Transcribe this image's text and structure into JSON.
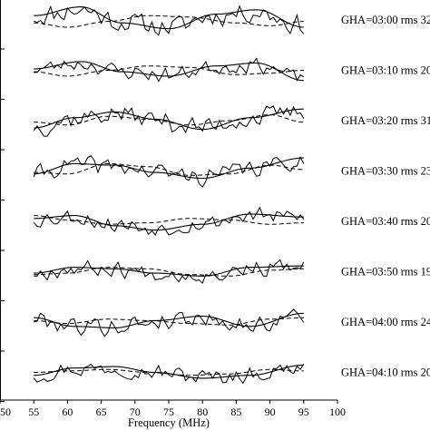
{
  "chart_data": {
    "type": "line",
    "title": "",
    "xlabel": "Frequency (MHz)",
    "ylabel": "",
    "xlim": [
      50,
      100
    ],
    "x_ticks": [
      "50",
      "55",
      "60",
      "65",
      "70",
      "75",
      "80",
      "85",
      "90",
      "95",
      "100"
    ],
    "x_data_range": [
      55,
      95
    ],
    "legend": "none",
    "grid": false,
    "panels": [
      {
        "label": "GHA=03:00 rms 32",
        "seed": 11,
        "noise": 1.0,
        "fit": [
          [
            55,
            0.3
          ],
          [
            62,
            0.9
          ],
          [
            68,
            -0.2
          ],
          [
            75,
            -0.6
          ],
          [
            82,
            0.4
          ],
          [
            88,
            0.7
          ],
          [
            95,
            -0.5
          ]
        ],
        "model": [
          [
            55,
            -0.2
          ],
          [
            60,
            -0.5
          ],
          [
            66,
            -0.1
          ],
          [
            72,
            0.3
          ],
          [
            78,
            0.2
          ],
          [
            85,
            -0.2
          ],
          [
            90,
            -0.4
          ],
          [
            95,
            -0.1
          ]
        ]
      },
      {
        "label": "GHA=03:10 rms 20",
        "seed": 23,
        "noise": 0.75,
        "fit": [
          [
            55,
            0.1
          ],
          [
            62,
            0.6
          ],
          [
            68,
            -0.1
          ],
          [
            75,
            -0.4
          ],
          [
            82,
            0.3
          ],
          [
            88,
            0.5
          ],
          [
            95,
            -0.7
          ]
        ],
        "model": [
          [
            55,
            -0.1
          ],
          [
            60,
            -0.4
          ],
          [
            66,
            0.0
          ],
          [
            72,
            0.3
          ],
          [
            78,
            0.2
          ],
          [
            85,
            -0.3
          ],
          [
            90,
            -0.2
          ],
          [
            95,
            0.0
          ]
        ]
      },
      {
        "label": "GHA=03:20 rms 31",
        "seed": 37,
        "noise": 1.0,
        "fit": [
          [
            55,
            -0.5
          ],
          [
            61,
            0.2
          ],
          [
            67,
            0.6
          ],
          [
            73,
            0.1
          ],
          [
            80,
            -0.6
          ],
          [
            87,
            0.2
          ],
          [
            95,
            0.8
          ]
        ],
        "model": [
          [
            55,
            -0.1
          ],
          [
            60,
            -0.3
          ],
          [
            66,
            0.3
          ],
          [
            72,
            0.1
          ],
          [
            78,
            -0.3
          ],
          [
            84,
            0.0
          ],
          [
            90,
            0.4
          ],
          [
            95,
            -0.1
          ]
        ]
      },
      {
        "label": "GHA=03:30 rms 23",
        "seed": 41,
        "noise": 0.85,
        "fit": [
          [
            55,
            -0.2
          ],
          [
            61,
            0.5
          ],
          [
            67,
            0.4
          ],
          [
            73,
            -0.1
          ],
          [
            80,
            -0.5
          ],
          [
            87,
            0.2
          ],
          [
            95,
            0.9
          ]
        ],
        "model": [
          [
            55,
            -0.1
          ],
          [
            60,
            -0.2
          ],
          [
            66,
            0.5
          ],
          [
            72,
            0.3
          ],
          [
            78,
            -0.3
          ],
          [
            84,
            -0.2
          ],
          [
            90,
            0.4
          ],
          [
            95,
            0.1
          ]
        ]
      },
      {
        "label": "GHA=03:40 rms 20",
        "seed": 53,
        "noise": 0.8,
        "fit": [
          [
            55,
            0.2
          ],
          [
            61,
            0.4
          ],
          [
            67,
            -0.3
          ],
          [
            73,
            -0.6
          ],
          [
            80,
            -0.2
          ],
          [
            87,
            0.5
          ],
          [
            95,
            0.3
          ]
        ],
        "model": [
          [
            55,
            0.4
          ],
          [
            60,
            0.1
          ],
          [
            66,
            -0.2
          ],
          [
            72,
            -0.1
          ],
          [
            78,
            0.2
          ],
          [
            84,
            0.1
          ],
          [
            90,
            -0.2
          ],
          [
            95,
            -0.1
          ]
        ]
      },
      {
        "label": "GHA=03:50 rms 19",
        "seed": 67,
        "noise": 0.75,
        "fit": [
          [
            55,
            -0.1
          ],
          [
            61,
            0.3
          ],
          [
            67,
            0.2
          ],
          [
            73,
            -0.1
          ],
          [
            80,
            -0.3
          ],
          [
            87,
            0.3
          ],
          [
            95,
            0.4
          ]
        ],
        "model": [
          [
            55,
            -0.2
          ],
          [
            60,
            -0.1
          ],
          [
            66,
            0.3
          ],
          [
            72,
            0.2
          ],
          [
            78,
            -0.2
          ],
          [
            84,
            -0.3
          ],
          [
            90,
            0.1
          ],
          [
            95,
            0.2
          ]
        ]
      },
      {
        "label": "GHA=04:00 rms 24",
        "seed": 79,
        "noise": 0.85,
        "fit": [
          [
            55,
            0.3
          ],
          [
            61,
            -0.3
          ],
          [
            67,
            -0.4
          ],
          [
            73,
            0.1
          ],
          [
            80,
            0.4
          ],
          [
            87,
            -0.3
          ],
          [
            95,
            0.6
          ]
        ],
        "model": [
          [
            55,
            0.1
          ],
          [
            60,
            -0.1
          ],
          [
            66,
            0.2
          ],
          [
            72,
            0.1
          ],
          [
            78,
            -0.1
          ],
          [
            84,
            -0.2
          ],
          [
            90,
            0.2
          ],
          [
            95,
            0.3
          ]
        ]
      },
      {
        "label": "GHA=04:10 rms 20",
        "seed": 97,
        "noise": 0.8,
        "fit": [
          [
            55,
            -0.2
          ],
          [
            61,
            0.3
          ],
          [
            67,
            0.4
          ],
          [
            73,
            0.0
          ],
          [
            80,
            -0.4
          ],
          [
            87,
            -0.2
          ],
          [
            95,
            0.5
          ]
        ],
        "model": [
          [
            55,
            0.0
          ],
          [
            60,
            0.1
          ],
          [
            66,
            0.2
          ],
          [
            72,
            0.0
          ],
          [
            78,
            -0.2
          ],
          [
            84,
            -0.1
          ],
          [
            90,
            0.2
          ],
          [
            95,
            0.1
          ]
        ]
      }
    ]
  }
}
